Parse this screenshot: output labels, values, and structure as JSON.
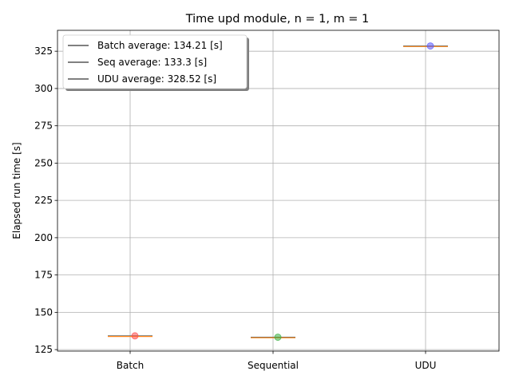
{
  "chart_data": {
    "type": "box",
    "title": "Time upd module, n = 1, m = 1",
    "xlabel": "",
    "ylabel": "Elapsed run time [s]",
    "categories": [
      "Batch",
      "Sequential",
      "UDU"
    ],
    "ylim": [
      124,
      339
    ],
    "yticks": [
      125,
      150,
      175,
      200,
      225,
      250,
      275,
      300,
      325
    ],
    "grid": true,
    "legend_placement": "top-left",
    "series": [
      {
        "category": "Batch",
        "median": 134.21,
        "points": [
          134.21
        ],
        "point_color": "#ff4d4d"
      },
      {
        "category": "Sequential",
        "median": 133.3,
        "points": [
          133.3
        ],
        "point_color": "#3cb043"
      },
      {
        "category": "UDU",
        "median": 328.52,
        "points": [
          328.52
        ],
        "point_color": "#5a5aff"
      }
    ],
    "legend": [
      "Batch average: 134.21 [s]",
      "Seq average: 133.3 [s]",
      "UDU average: 328.52 [s]"
    ],
    "colors": {
      "box": "#1f77b4",
      "median": "#ff7f0e",
      "legend_line": "#000000"
    }
  }
}
